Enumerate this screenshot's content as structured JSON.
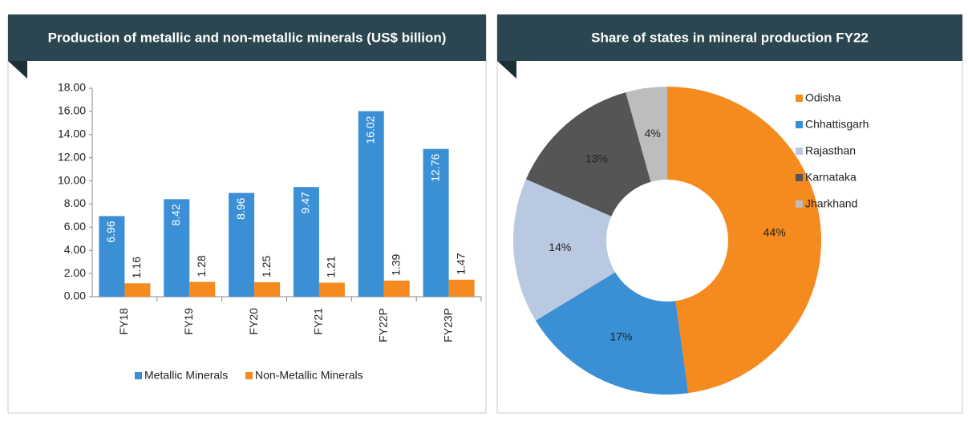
{
  "chart_data": [
    {
      "type": "bar",
      "title": "Production of metallic and non-metallic minerals (US$ billion)",
      "categories": [
        "FY18",
        "FY19",
        "FY20",
        "FY21",
        "FY22P",
        "FY23P"
      ],
      "series": [
        {
          "name": "Metallic Minerals",
          "color": "#3b8fd4",
          "values": [
            6.96,
            8.42,
            8.96,
            9.47,
            16.02,
            12.76
          ]
        },
        {
          "name": "Non-Metallic Minerals",
          "color": "#f58a1f",
          "values": [
            1.16,
            1.28,
            1.25,
            1.21,
            1.39,
            1.47
          ]
        }
      ],
      "ylim": [
        0,
        18
      ],
      "yticks": [
        {
          "value": 0,
          "label": "0.00"
        },
        {
          "value": 2,
          "label": "2.00"
        },
        {
          "value": 4,
          "label": "4.00"
        },
        {
          "value": 6,
          "label": "6.00"
        },
        {
          "value": 8,
          "label": "8.00"
        },
        {
          "value": 10,
          "label": "10.00"
        },
        {
          "value": 12,
          "label": "12.00"
        },
        {
          "value": 14,
          "label": "14.00"
        },
        {
          "value": 16,
          "label": "16.00"
        },
        {
          "value": 18,
          "label": "18.00"
        }
      ],
      "grid": false,
      "legend": "bottom"
    },
    {
      "type": "donut",
      "title": "Share of states in mineral production FY22",
      "categories": [
        "Odisha",
        "Chhattisgarh",
        "Rajasthan",
        "Karnataka",
        "Jharkhand"
      ],
      "values": [
        44,
        17,
        14,
        13,
        4
      ],
      "value_labels": [
        "44%",
        "17%",
        "14%",
        "13%",
        "4%"
      ],
      "colors": [
        "#f58a1f",
        "#3b8fd4",
        "#b9c9e1",
        "#555555",
        "#bdbdbd"
      ],
      "legend": "right"
    }
  ]
}
